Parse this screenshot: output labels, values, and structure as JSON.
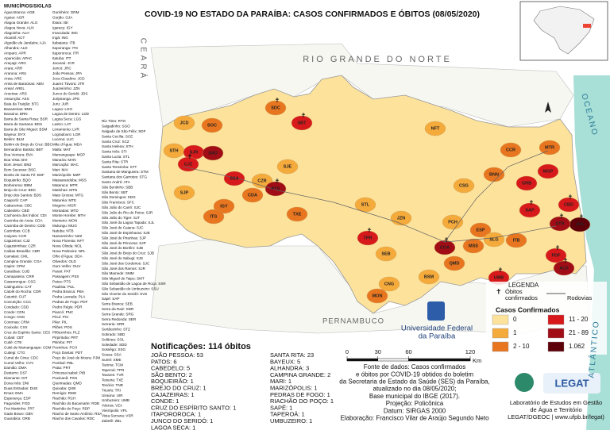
{
  "title": "COVID-19 NO ESTADO DA PARAÍBA: CASOS CONFIRMADOS E  ÓBITOS (08/05/2020)",
  "municipalities_header": "MUNICÍPIOS/SIGLAS",
  "municipalities": [
    [
      "Água Branca: AGB",
      "Aguiar: AGR",
      "Alagoa Grande: ALG",
      "Alagoa Nova: ALN",
      "Alagoinha: ALH",
      "Alcantil: ACT",
      "Algodão de Jandaíra: AJA",
      "Alhandra: ALD",
      "Amparo: APR",
      "Aparecida: APAC",
      "Araçagi: ARG",
      "Arara: ARR",
      "Araruna: ARU",
      "Areia: ARE",
      "Areia de Baraúnas: ABN",
      "Areial: AREL",
      "Aroeiras: ARS",
      "Assunção: ASS",
      "Baía da Traição: BTC",
      "Bananeiras: BNN",
      "Baraúna: BRN",
      "Barra de Santa Rosa: BSR",
      "Barra de Santana: BDS",
      "Barra de São Miguel: BSM",
      "Bayeux: BYX",
      "Belém: BLM",
      "Belém do Brejo do Cruz: BBC",
      "Bernardino Batista: BBT",
      "Boa Ventura: BVA",
      "Boa Vista: BVI",
      "Bom Jesus: BMJ",
      "Bom Sucesso: BSC",
      "Bonito de Santa Fé: BSF",
      "Boqueirão: BQO",
      "Borborema: BBM",
      "Brejo do Cruz: BDC",
      "Brejo dos Santos: BDS",
      "Caaporã: CAP",
      "Cabaceiras: CBC",
      "Cabedelo: CBD",
      "Cachoeira dos Índios: CDI",
      "Cacimba de Areia: CDA",
      "Cacimba de Dentro: CDD",
      "Cacimbas: CCB",
      "Caiçara: CCR",
      "Cajazeiras: CJZ",
      "Cajazeirinhas: CZR",
      "Caldas Brandão: CBR",
      "Camalaú: CML",
      "Campina Grande: CGA",
      "Capim: CPM",
      "Caraúbas: CUB",
      "Carrapateira: CRR",
      "Casserengue: CSG",
      "Catingueira: CAT",
      "Catolé do Rocha: CDR",
      "Caturité: CUT",
      "Conceição: CCC",
      "Condado: CDD",
      "Conde: CDN",
      "Congo: CNG",
      "Coremas: CRM",
      "Coxixola: CXX",
      "Cruz do Espírito Santo: CES",
      "Cubati: CBT",
      "Cuité: CTE",
      "Cuité de Mamanguape: CDM",
      "Cuitegi: CTG",
      "Curral de Cima: CDC",
      "Curral Velho: CVV",
      "Damião: DMA",
      "Desterro: DST",
      "Diamante: DIT",
      "Dona Inês: DNI",
      "Duas Estradas: DUE",
      "Emas: EMA",
      "Esperança: ESP",
      "Fagundes: FGD",
      "Frei Martinho: FRT",
      "Gado Bravo: GBV",
      "Guarabira: GRB"
    ],
    [
      "Gurinhém: GRM",
      "Gurjão: GJA",
      "Ibiara: IBI",
      "Igaracy: IGY",
      "Imaculada: IMC",
      "Ingá: ING",
      "Itabaiana: ITB",
      "Itaporanga: ITG",
      "Itapororoca: ITR",
      "Itatuba: ITT",
      "Jacaraú: JCR",
      "Jericó: JRC",
      "João Pessoa: JPA",
      "Joca Claudino: JCD",
      "Juarez Távora: JTR",
      "Juazeirinho: JZN",
      "Junco do Seridó: JDS",
      "Juripiranga: JPG",
      "Juru: JUR",
      "Lagoa: LGO",
      "Lagoa de Dentro: LDD",
      "Lagoa Seca: LGS",
      "Lastro: LAT",
      "Livramento: LVR",
      "Logradouro: LGR",
      "Lucena: LUC",
      "Mãe d'Água: MDA",
      "Malta: MAT",
      "Mamanguape: MGP",
      "Manaíra: MAN",
      "Marcação: MAC",
      "Mari: MAI",
      "Marizópolis: MZP",
      "Massaranduba: MSS",
      "Mataraca: MTR",
      "Matinhas: MTN",
      "Mato Grosso: MTG",
      "Maturéia: MTE",
      "Mogeiro: MGR",
      "Montadas: MTD",
      "Monte Horebe: MTH",
      "Monteiro: MON",
      "Mulungu: MUG",
      "Natuba: NTB",
      "Nazarezinho: NZZ",
      "Nova Floresta: NFT",
      "Nova Olinda: NOL",
      "Nova Palmeira: NPL",
      "Olho d'Água: ODA",
      "Olivedos: OLD",
      "Ouro Velho: OUV",
      "Parari: PAT",
      "Passagem: PSS",
      "Patos: PTS",
      "Paulista: PUL",
      "Pedra Branca: PBA",
      "Pedra Lavrada: PLA",
      "Pedras de Fogo: PDF",
      "Pedro Régis: PDR",
      "Piancó: PNC",
      "Picuí: PCI",
      "Pilar: PIL",
      "Pilões: POS",
      "Pilõezinhos: PLZ",
      "Pirpirituba: PRT",
      "Pitimbu: PIT",
      "Pocinhos: PCH",
      "Poço Dantas: PDT",
      "Poço de José de Moura: PJM",
      "Pombal: PBL",
      "Prata: PRT",
      "Princesa Isabel: PIB",
      "Puxinanã: PXN",
      "Queimadas: QMD",
      "Quixaba: QXB",
      "Remígio: RMG",
      "Riachão: RCH",
      "Riachão do Bacamarte: RDB",
      "Riachão do Poço: RDP",
      "Riacho de Santo Antônio: RSA",
      "Riacho dos Cavalos: RDC"
    ],
    [
      "Rio Tinto: RTO",
      "Salgadinho: SGO",
      "Salgado de São Félix: SDF",
      "Santa Cecília: SCE",
      "Santa Cruz: SCZ",
      "Santa Helena: STH",
      "Santa Inês: STI",
      "Santa Luzia: STL",
      "Santa Rita: STR",
      "Santa Teresinha: STT",
      "Santana de Mangueira: STM",
      "Santana dos Garrotes: STG",
      "Santo André: ATA",
      "São Bentinho: SBB",
      "São Bento: SBT",
      "São Domingos: SDG",
      "São Francisco: SFC",
      "São João do Cariri: SJC",
      "São João do Rio do Peixe: SJR",
      "São João do Tigre: SJT",
      "São José da Lagoa Tapada: SJL",
      "São José de Caiana: SJC",
      "São José de Espinharas: SJE",
      "São José de Piranhas: SJP",
      "São José de Princesa: SJP",
      "São José do Bonfim: SJB",
      "São José do Brejo do Cruz: SJB",
      "São José do Sabugi: SJS",
      "São José dos Cordeiros: SJC",
      "São José dos Ramos: SJR",
      "São Mamede: SMM",
      "São Miguel de Taipu: SMT",
      "São Sebastião de Lagoa de Roça: SSR",
      "São Sebastião do Umbuzeiro: SSU",
      "São Vicente do Seridó: SVS",
      "Sapé: SAP",
      "Serra Branca: SEB",
      "Serra da Raiz: SDR",
      "Serra Grande: SRG",
      "Serra Redonda: SER",
      "Serraria: SRR",
      "Sertãozinho: STZ",
      "Sobrado: SBD",
      "Solânea: SOL",
      "Soledade: SDD",
      "Sossêgo: SSG",
      "Sousa: SSA",
      "Sumé: SME",
      "Tacima: TCM",
      "Taperoá: TPR",
      "Tavares: TVR",
      "Teixeira: TXE",
      "Tenório: TNR",
      "Triunfo: TRI",
      "Uiraúna: UIR",
      "Umbuzeiro: UMB",
      "Várzea: VZA",
      "Vieirópolis: VPL",
      "Vista Serrana: VSR",
      "Zabelê: ZBL"
    ]
  ],
  "neighbors": [
    "CEARÁ",
    "RIO GRANDE DO NORTE",
    "PERNAMBUCO"
  ],
  "ocean": [
    "OCEANO",
    "ATLÂNTICO"
  ],
  "map_labels": [
    {
      "label": "SDC",
      "class": 2,
      "death": true
    },
    {
      "label": "SBT",
      "class": 3,
      "death": true
    },
    {
      "label": "JCD",
      "class": 1,
      "death": false
    },
    {
      "label": "SOC",
      "class": 2,
      "death": false
    },
    {
      "label": "STH",
      "class": 1,
      "death": false
    },
    {
      "label": "SJR",
      "class": 3,
      "death": false
    },
    {
      "label": "SAD",
      "class": 4,
      "death": false
    },
    {
      "label": "CJZ",
      "class": 3,
      "death": true
    },
    {
      "label": "SSA",
      "class": 3,
      "death": false
    },
    {
      "label": "SJP",
      "class": 1,
      "death": false
    },
    {
      "label": "CZR",
      "class": 1,
      "death": false
    },
    {
      "label": "CDA",
      "class": 2,
      "death": false
    },
    {
      "label": "PTS",
      "class": 4,
      "death": true
    },
    {
      "label": "SJE",
      "class": 1,
      "death": false
    },
    {
      "label": "IGY",
      "class": 2,
      "death": false
    },
    {
      "label": "ITG",
      "class": 2,
      "death": false
    },
    {
      "label": "TXE",
      "class": 2,
      "death": false
    },
    {
      "label": "STL",
      "class": 1,
      "death": false
    },
    {
      "label": "JZN",
      "class": 1,
      "death": false
    },
    {
      "label": "TPR",
      "class": 3,
      "death": true
    },
    {
      "label": "SEB",
      "class": 1,
      "death": false
    },
    {
      "label": "CNG",
      "class": 1,
      "death": false
    },
    {
      "label": "BSM",
      "class": 1,
      "death": false
    },
    {
      "label": "CGA",
      "class": 4,
      "death": true
    },
    {
      "label": "QMD",
      "class": 2,
      "death": false
    },
    {
      "label": "UMB",
      "class": 3,
      "death": true
    },
    {
      "label": "MON",
      "class": 2,
      "death": false
    },
    {
      "label": "ESP",
      "class": 2,
      "death": false
    },
    {
      "label": "PCH",
      "class": 1,
      "death": false
    },
    {
      "label": "SLG",
      "class": 1,
      "death": false
    },
    {
      "label": "BNN",
      "class": 2,
      "death": false
    },
    {
      "label": "CSG",
      "class": 1,
      "death": false
    },
    {
      "label": "NFT",
      "class": 1,
      "death": false
    },
    {
      "label": "CCR",
      "class": 2,
      "death": false
    },
    {
      "label": "MTR",
      "class": 2,
      "death": false
    },
    {
      "label": "MGP",
      "class": 3,
      "death": false
    },
    {
      "label": "GRB",
      "class": 3,
      "death": false
    },
    {
      "label": "SAP",
      "class": 3,
      "death": true
    },
    {
      "label": "CBD",
      "class": 3,
      "death": true
    },
    {
      "label": "JPA",
      "class": 5,
      "death": true
    },
    {
      "label": "STR",
      "class": 4,
      "death": true
    },
    {
      "label": "ITB",
      "class": 2,
      "death": false
    },
    {
      "label": "MSS",
      "class": 2,
      "death": false
    },
    {
      "label": "PDF",
      "class": 3,
      "death": true
    },
    {
      "label": "ALD",
      "class": 4,
      "death": true
    }
  ],
  "legend": {
    "title": "LEGENDA",
    "deaths": "Óbitos\nconfirmados",
    "roads": "Rodovias",
    "cases_title": "Casos Confirmados",
    "classes": [
      {
        "label": "0",
        "color": "#fce29b"
      },
      {
        "label": "1",
        "color": "#f5aa3c"
      },
      {
        "label": "2 - 10",
        "color": "#e8751f"
      },
      {
        "label": "11 - 20",
        "color": "#d7191c"
      },
      {
        "label": "21 - 89",
        "color": "#a10d16"
      },
      {
        "label": "1.062",
        "color": "#5e0009"
      }
    ]
  },
  "notifications": {
    "title": "Notificações: 114 óbitos",
    "columns": [
      [
        "JOÃO PESSOA: 53",
        "PATOS: 6",
        "CABEDELO: 5",
        "SÃO BENTO: 2",
        "BOQUEIRÃO: 1",
        "BREJO DO CRUZ: 1",
        "CAJAZEIRAS: 1",
        "CONDE: 1",
        "CRUZ DO ESPÍRITO SANTO: 1",
        "ITAPOROROCA: 1",
        "JUNCO DO SERIDÓ: 1",
        "LAGOA SECA: 1"
      ],
      [
        "SANTA RITA: 23",
        "BAYEUX: 5",
        "ALHANDRA: 3",
        "CAMPINA GRANDE: 2",
        "MARI: 1",
        "MARIZÓPOLIS: 1",
        "PEDRAS DE FOGO: 1",
        "RIACHÃO DO POÇO: 1",
        "SAPÉ: 1",
        "TAPEROÁ: 1",
        "UMBUZEIRO: 1"
      ]
    ]
  },
  "scale": {
    "ticks": [
      0,
      30,
      60,
      120
    ],
    "unit": "Km"
  },
  "university": [
    "Universidade Federal",
    "da Paraíba"
  ],
  "source": [
    "Fonte de dados: Casos confirmados",
    "e óbitos por COVID-19 obtidos do boletim",
    "da Secretaria de Estado da Saúde (SES) da Paraíba,",
    "atualizado no dia 08/05/2020;",
    "Base municipal do IBGE (2017).",
    "Projeção: Policônica",
    "Datum: SIRGAS 2000",
    "Elaboração: Francisco Vilar de Araújo Segundo Neto"
  ],
  "lab": {
    "logo": "LEGAT",
    "lines": [
      "Laboratório de Estudos em Gestão",
      "de Água e Território",
      "LEGAT/DGEOC | www.ufpb.br/legat)"
    ]
  }
}
